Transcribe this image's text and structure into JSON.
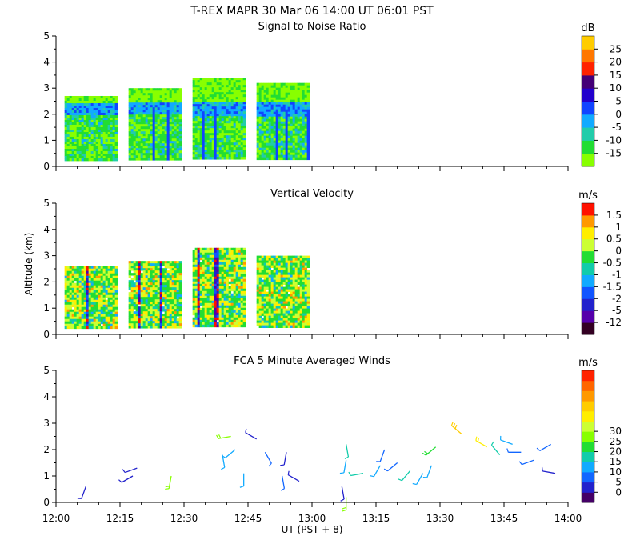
{
  "figure": {
    "title": "T-REX   MAPR 30 Mar 06   14:00 UT   06:01   PST",
    "xlabel": "UT  (PST + 8)",
    "ylabel": "Altitude (km)"
  },
  "chart_data": [
    {
      "type": "heatmap",
      "title": "Signal to Noise Ratio",
      "unit": "dB",
      "ylim": [
        0,
        5
      ],
      "yticks": [
        "0",
        "1",
        "2",
        "3",
        "4",
        "5"
      ],
      "xticks": [
        "12:00",
        "12:15",
        "12:30",
        "12:45",
        "13:00",
        "13:15",
        "13:30",
        "13:45",
        "14:00"
      ],
      "colorbar": {
        "labels": [
          "-15",
          "-10",
          "-5",
          "0",
          "5",
          "10",
          "15",
          "20",
          "25"
        ],
        "colors": [
          "#88ff00",
          "#22dd33",
          "#22ccaa",
          "#11aaff",
          "#1144ff",
          "#2200cc",
          "#440077",
          "#ff2200",
          "#ff7700",
          "#ffcc00"
        ]
      },
      "segments": [
        {
          "start": "12:02",
          "end": "12:14",
          "base_km": 0.3,
          "top_km": 2.7
        },
        {
          "start": "12:17",
          "end": "12:29",
          "base_km": 0.3,
          "top_km": 3.0
        },
        {
          "start": "12:32",
          "end": "12:44",
          "base_km": 0.3,
          "top_km": 3.4
        },
        {
          "start": "12:47",
          "end": "12:59",
          "base_km": 0.3,
          "top_km": 3.2
        }
      ]
    },
    {
      "type": "heatmap",
      "title": "Vertical Velocity",
      "unit": "m/s",
      "ylim": [
        0,
        5
      ],
      "yticks": [
        "0",
        "1",
        "2",
        "3",
        "4",
        "5"
      ],
      "colorbar": {
        "labels": [
          "-12",
          "-5",
          "-2",
          "-1.5",
          "-1",
          "-0.5",
          "0",
          "0.5",
          "1",
          "1.5"
        ],
        "colors": [
          "#330022",
          "#5500aa",
          "#2222cc",
          "#1155ff",
          "#11aaff",
          "#11ccaa",
          "#22dd33",
          "#ccff33",
          "#ffee00",
          "#ff9900",
          "#ff1100"
        ]
      },
      "segments": [
        {
          "start": "12:02",
          "end": "12:14",
          "base_km": 0.3,
          "top_km": 2.6
        },
        {
          "start": "12:17",
          "end": "12:29",
          "base_km": 0.3,
          "top_km": 2.8
        },
        {
          "start": "12:32",
          "end": "12:44",
          "base_km": 0.3,
          "top_km": 3.3
        },
        {
          "start": "12:47",
          "end": "12:59",
          "base_km": 0.3,
          "top_km": 3.0
        }
      ]
    },
    {
      "type": "scatter",
      "title": "FCA 5 Minute Averaged Winds",
      "unit": "m/s",
      "ylim": [
        0,
        5
      ],
      "yticks": [
        "0",
        "1",
        "2",
        "3",
        "4",
        "5"
      ],
      "xlim": [
        "12:00",
        "14:00"
      ],
      "colorbar": {
        "labels": [
          "0",
          "5",
          "10",
          "15",
          "20",
          "25",
          "30"
        ],
        "colors": [
          "#440066",
          "#2222cc",
          "#1166ff",
          "#11aaff",
          "#11ccaa",
          "#22dd33",
          "#88ff00",
          "#ccff33",
          "#ffee00",
          "#ffcc00",
          "#ff9900",
          "#ff6600",
          "#ff2200"
        ]
      },
      "barbs": [
        {
          "t": "12:07",
          "alt": 0.6,
          "speed": 3,
          "dir": 200
        },
        {
          "t": "12:18",
          "alt": 1.0,
          "speed": 4,
          "dir": 240
        },
        {
          "t": "12:19",
          "alt": 1.3,
          "speed": 4,
          "dir": 250
        },
        {
          "t": "12:27",
          "alt": 1.0,
          "speed": 15,
          "dir": 190
        },
        {
          "t": "12:39",
          "alt": 1.8,
          "speed": 8,
          "dir": 170
        },
        {
          "t": "12:41",
          "alt": 2.5,
          "speed": 16,
          "dir": 260
        },
        {
          "t": "12:42",
          "alt": 2.0,
          "speed": 9,
          "dir": 230
        },
        {
          "t": "12:44",
          "alt": 1.1,
          "speed": 7,
          "dir": 180
        },
        {
          "t": "12:47",
          "alt": 2.4,
          "speed": 4,
          "dir": 300
        },
        {
          "t": "12:49",
          "alt": 1.9,
          "speed": 6,
          "dir": 150
        },
        {
          "t": "12:53",
          "alt": 1.0,
          "speed": 5,
          "dir": 170
        },
        {
          "t": "12:54",
          "alt": 1.9,
          "speed": 4,
          "dir": 190
        },
        {
          "t": "12:57",
          "alt": 0.8,
          "speed": 3,
          "dir": 300
        },
        {
          "t": "13:07",
          "alt": 0.6,
          "speed": 4,
          "dir": 170
        },
        {
          "t": "13:08",
          "alt": 0.2,
          "speed": 14,
          "dir": 180
        },
        {
          "t": "13:08",
          "alt": 1.6,
          "speed": 9,
          "dir": 190
        },
        {
          "t": "13:08",
          "alt": 2.2,
          "speed": 10,
          "dir": 170
        },
        {
          "t": "13:12",
          "alt": 1.1,
          "speed": 11,
          "dir": 260
        },
        {
          "t": "13:16",
          "alt": 1.4,
          "speed": 7,
          "dir": 210
        },
        {
          "t": "13:17",
          "alt": 2.0,
          "speed": 6,
          "dir": 200
        },
        {
          "t": "13:20",
          "alt": 1.5,
          "speed": 5,
          "dir": 230
        },
        {
          "t": "13:23",
          "alt": 1.2,
          "speed": 11,
          "dir": 220
        },
        {
          "t": "13:26",
          "alt": 1.1,
          "speed": 8,
          "dir": 210
        },
        {
          "t": "13:28",
          "alt": 1.4,
          "speed": 7,
          "dir": 200
        },
        {
          "t": "13:29",
          "alt": 2.1,
          "speed": 12,
          "dir": 230
        },
        {
          "t": "13:35",
          "alt": 2.6,
          "speed": 23,
          "dir": 310
        },
        {
          "t": "13:41",
          "alt": 2.1,
          "speed": 19,
          "dir": 300
        },
        {
          "t": "13:44",
          "alt": 1.8,
          "speed": 10,
          "dir": 320
        },
        {
          "t": "13:47",
          "alt": 2.2,
          "speed": 9,
          "dir": 290
        },
        {
          "t": "13:49",
          "alt": 1.9,
          "speed": 5,
          "dir": 270
        },
        {
          "t": "13:52",
          "alt": 1.6,
          "speed": 6,
          "dir": 250
        },
        {
          "t": "13:56",
          "alt": 2.2,
          "speed": 5,
          "dir": 240
        },
        {
          "t": "13:57",
          "alt": 1.1,
          "speed": 4,
          "dir": 280
        }
      ]
    }
  ]
}
